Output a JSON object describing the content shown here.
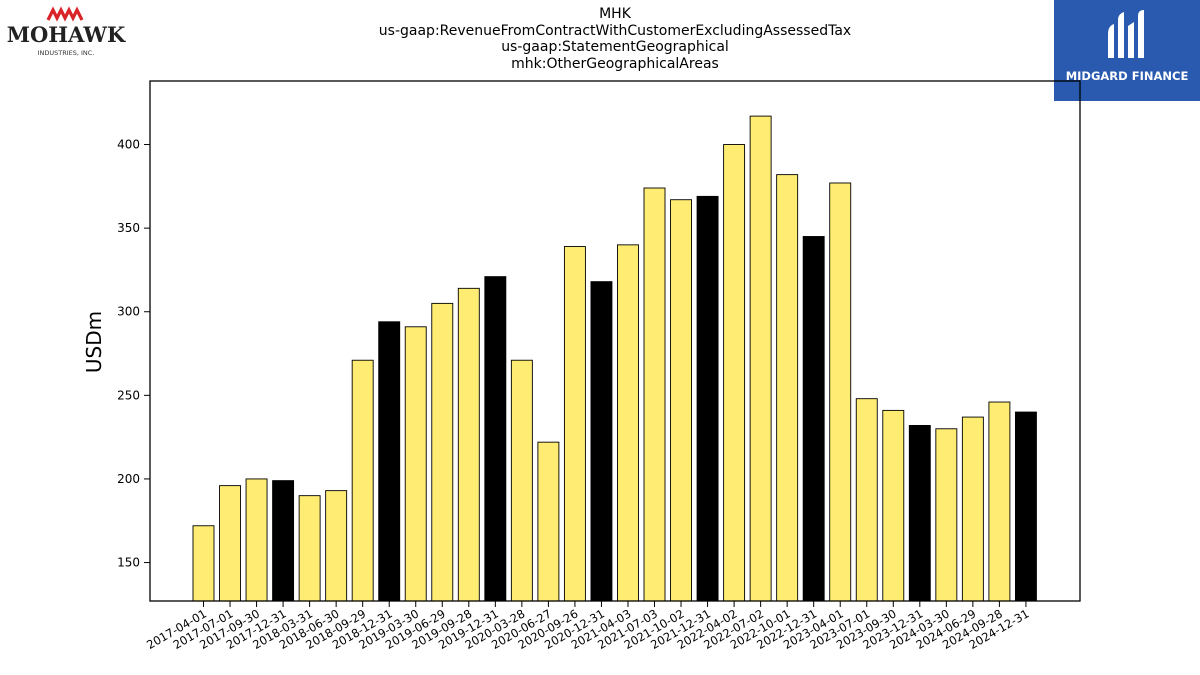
{
  "header": {
    "title_lines": [
      "MHK",
      "us-gaap:RevenueFromContractWithCustomerExcludingAssessedTax",
      "us-gaap:StatementGeographical",
      "mhk:OtherGeographicalAreas"
    ]
  },
  "logos": {
    "left": {
      "name": "MOHAWK",
      "subtitle": "INDUSTRIES, INC.",
      "accent": "#d9252a"
    },
    "right": {
      "name": "MIDGARD FINANCE",
      "background": "#2a59b0"
    }
  },
  "colors": {
    "quarter_bar": "#ffec73",
    "annual_bar": "#000000",
    "bar_edge": "#000000"
  },
  "chart_data": {
    "type": "bar",
    "title": "",
    "xlabel": "",
    "ylabel": "USDm",
    "ylim": [
      127,
      438
    ],
    "yticks": [
      150,
      200,
      250,
      300,
      350,
      400
    ],
    "grid": false,
    "legend": "none",
    "categories": [
      "2017-04-01",
      "2017-07-01",
      "2017-09-30",
      "2017-12-31",
      "2018-03-31",
      "2018-06-30",
      "2018-09-29",
      "2018-12-31",
      "2019-03-30",
      "2019-06-29",
      "2019-09-28",
      "2019-12-31",
      "2020-03-28",
      "2020-06-27",
      "2020-09-26",
      "2020-12-31",
      "2021-04-03",
      "2021-07-03",
      "2021-10-02",
      "2021-12-31",
      "2022-04-02",
      "2022-07-02",
      "2022-10-01",
      "2022-12-31",
      "2023-04-01",
      "2023-07-01",
      "2023-09-30",
      "2023-12-31",
      "2024-03-30",
      "2024-06-29",
      "2024-09-28",
      "2024-12-31"
    ],
    "values": [
      172,
      196,
      200,
      199,
      190,
      193,
      271,
      294,
      291,
      305,
      314,
      321,
      271,
      222,
      339,
      318,
      340,
      374,
      367,
      369,
      400,
      417,
      382,
      345,
      377,
      248,
      241,
      232,
      230,
      237,
      246,
      240
    ],
    "annual": [
      false,
      false,
      false,
      true,
      false,
      false,
      false,
      true,
      false,
      false,
      false,
      true,
      false,
      false,
      false,
      true,
      false,
      false,
      false,
      true,
      false,
      false,
      false,
      true,
      false,
      false,
      false,
      true,
      false,
      false,
      false,
      true
    ]
  }
}
